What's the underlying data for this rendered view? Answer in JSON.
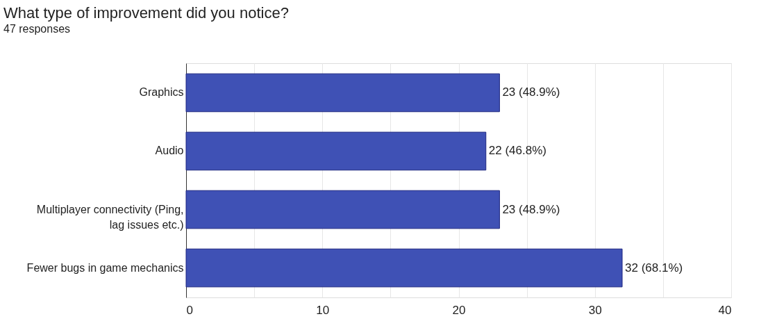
{
  "chart_data": {
    "type": "bar",
    "orientation": "horizontal",
    "title": "What type of improvement did you notice?",
    "subtitle": "47 responses",
    "categories": [
      "Graphics",
      "Audio",
      "Multiplayer connectivity (Ping, lag issues etc.)",
      "Fewer bugs in game mechanics"
    ],
    "values": [
      23,
      22,
      23,
      32
    ],
    "color": "#3f51b5",
    "value_labels": [
      "23 (48.9%)",
      "22 (46.8%)",
      "23 (48.9%)",
      "32 (68.1%)"
    ],
    "xlim": [
      0,
      40
    ],
    "xticks": [
      0,
      {
        "value": 5,
        "label": null
      },
      10,
      {
        "value": 15,
        "label": null
      },
      20,
      {
        "value": 25,
        "label": null
      },
      30,
      {
        "value": 35,
        "label": null
      },
      40
    ],
    "grid": "x"
  }
}
